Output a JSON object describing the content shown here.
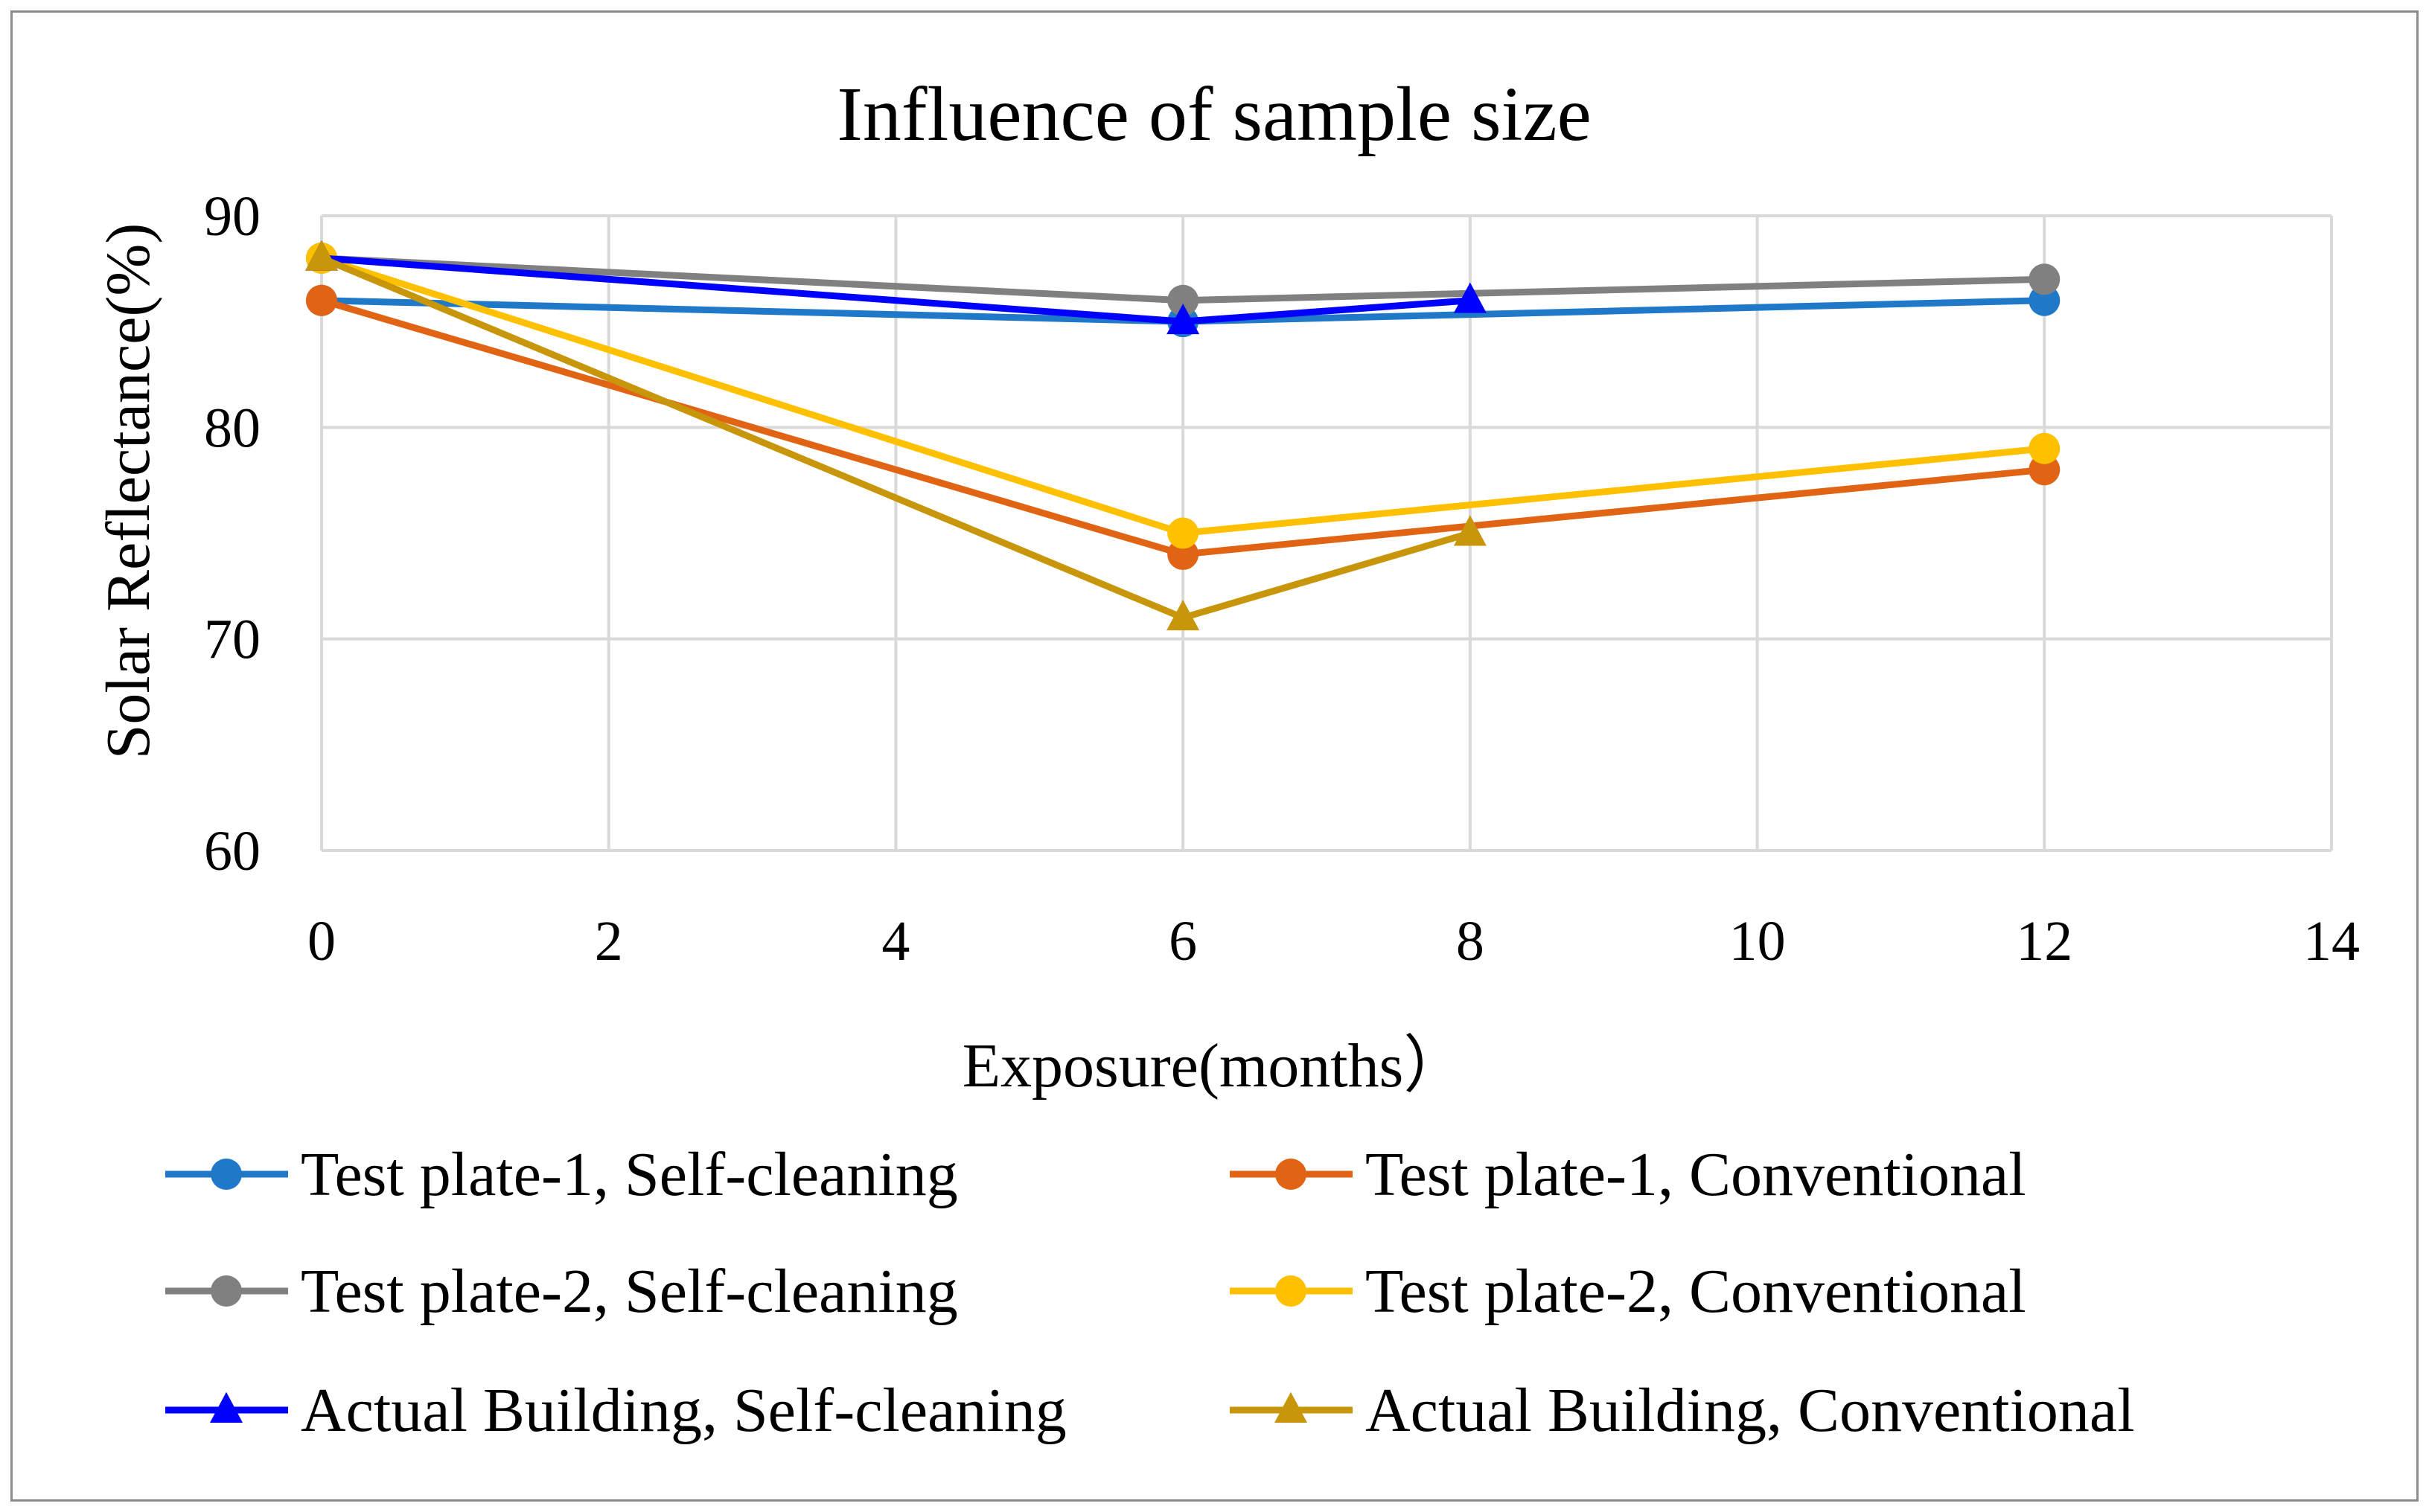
{
  "chart_data": {
    "type": "line",
    "title": "Influence of sample size",
    "xlabel": "Exposure(months）",
    "ylabel": "Solar Reflectance(%)",
    "xlim": [
      0,
      14
    ],
    "ylim": [
      60,
      90
    ],
    "x_ticks": [
      0,
      2,
      4,
      6,
      8,
      10,
      12,
      14
    ],
    "y_ticks": [
      60,
      70,
      80,
      90
    ],
    "x_tick_labels": [
      "0",
      "2",
      "4",
      "6",
      "8",
      "10",
      "12",
      "14"
    ],
    "y_tick_labels": [
      "60",
      "70",
      "80",
      "90"
    ],
    "grid": true,
    "legend_position": "bottom",
    "series": [
      {
        "name": "Test plate-1, Self-cleaning",
        "color": "#1f78c8",
        "marker": "circle",
        "x": [
          0,
          6,
          12
        ],
        "values": [
          86,
          85,
          86
        ]
      },
      {
        "name": "Test plate-1, Conventional",
        "color": "#e06414",
        "marker": "circle",
        "x": [
          0,
          6,
          12
        ],
        "values": [
          86,
          74,
          78
        ]
      },
      {
        "name": "Test plate-2, Self-cleaning",
        "color": "#808080",
        "marker": "circle",
        "x": [
          0,
          6,
          12
        ],
        "values": [
          88,
          86,
          87
        ]
      },
      {
        "name": "Test plate-2, Conventional",
        "color": "#ffc000",
        "marker": "circle",
        "x": [
          0,
          6,
          12
        ],
        "values": [
          88,
          75,
          79
        ]
      },
      {
        "name": "Actual Building, Self-cleaning",
        "color": "#0000ff",
        "marker": "triangle",
        "x": [
          0,
          6,
          8
        ],
        "values": [
          88,
          85,
          86
        ]
      },
      {
        "name": "Actual Building, Conventional",
        "color": "#c8960a",
        "marker": "triangle",
        "x": [
          0,
          6,
          8
        ],
        "values": [
          88,
          71,
          75
        ]
      }
    ]
  }
}
